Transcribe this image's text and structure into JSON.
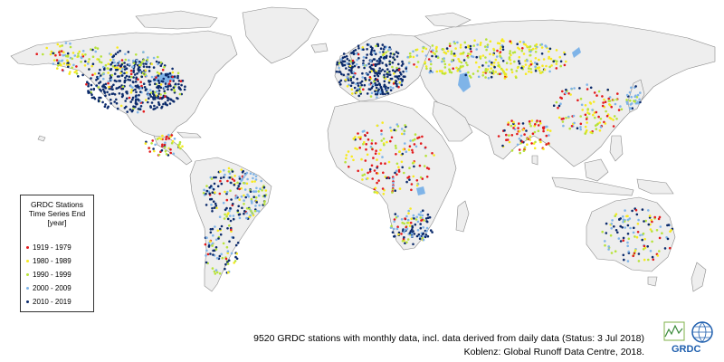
{
  "legend": {
    "title_lines": [
      "GRDC Stations",
      "Time Series End",
      "[year]"
    ],
    "items": [
      {
        "label": "1919 - 1979",
        "color": "#e31a1c"
      },
      {
        "label": "1980 - 1989",
        "color": "#f7ea1e"
      },
      {
        "label": "1990 - 1999",
        "color": "#b7e33a"
      },
      {
        "label": "2000 - 2009",
        "color": "#7fb4e8"
      },
      {
        "label": "2010 - 2019",
        "color": "#0b2a6b"
      }
    ]
  },
  "caption": {
    "line1": "9520 GRDC stations with monthly data, incl. data derived from daily data (Status: 3 Jul 2018)",
    "line2": "Koblenz: Global Runoff Data Centre, 2018."
  },
  "logo": {
    "text": "GRDC"
  },
  "colors": {
    "land": "#eeeeee",
    "borders": "#8a8a8a",
    "ocean": "#ffffff",
    "lake": "#7fb4e8"
  }
}
